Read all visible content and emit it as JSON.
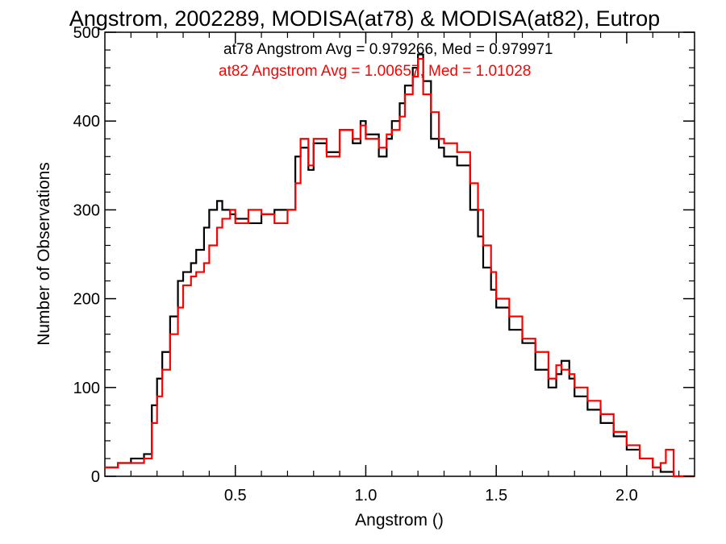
{
  "chart_data": {
    "type": "line",
    "title": "Angstrom, 2002289, MODISA(at78) & MODISA(at82), Eutrop",
    "xlabel": "Angstrom ()",
    "ylabel": "Number of Observations",
    "xlim": [
      0.0,
      2.26
    ],
    "ylim": [
      0,
      500
    ],
    "xticks": [
      0.5,
      1.0,
      1.5,
      2.0
    ],
    "xtick_labels": [
      "0.5",
      "1.0",
      "1.5",
      "2.0"
    ],
    "yticks": [
      0,
      100,
      200,
      300,
      400,
      500
    ],
    "ytick_labels": [
      "0",
      "100",
      "200",
      "300",
      "400",
      "500"
    ],
    "grid": false,
    "legend": "top-center annotations",
    "annotations": [
      {
        "text": "at78 Angstrom Avg = 0.979266, Med = 0.979971",
        "color": "#000000"
      },
      {
        "text": "at82 Angstrom Avg = 1.00657, Med = 1.01028",
        "color": "#ff0000"
      }
    ],
    "series": [
      {
        "color": "#000000",
        "step": true,
        "x": [
          0.0,
          0.05,
          0.1,
          0.15,
          0.18,
          0.2,
          0.22,
          0.25,
          0.28,
          0.3,
          0.33,
          0.35,
          0.38,
          0.4,
          0.43,
          0.45,
          0.48,
          0.5,
          0.55,
          0.6,
          0.65,
          0.7,
          0.73,
          0.75,
          0.78,
          0.8,
          0.85,
          0.9,
          0.95,
          0.98,
          1.0,
          1.05,
          1.08,
          1.1,
          1.13,
          1.15,
          1.18,
          1.2,
          1.22,
          1.25,
          1.28,
          1.3,
          1.35,
          1.4,
          1.43,
          1.45,
          1.48,
          1.5,
          1.55,
          1.6,
          1.65,
          1.7,
          1.73,
          1.75,
          1.78,
          1.8,
          1.85,
          1.9,
          1.95,
          2.0,
          2.05,
          2.1,
          2.13,
          2.15,
          2.18,
          2.26
        ],
        "y": [
          10,
          15,
          20,
          25,
          80,
          110,
          140,
          180,
          220,
          230,
          240,
          255,
          280,
          300,
          310,
          300,
          295,
          290,
          285,
          295,
          300,
          300,
          360,
          370,
          345,
          375,
          365,
          390,
          375,
          400,
          385,
          360,
          380,
          400,
          420,
          440,
          460,
          475,
          445,
          380,
          370,
          360,
          350,
          300,
          270,
          235,
          210,
          190,
          165,
          150,
          120,
          100,
          115,
          130,
          110,
          90,
          75,
          60,
          45,
          30,
          20,
          10,
          5,
          5,
          0,
          0
        ]
      },
      {
        "color": "#ff0000",
        "step": true,
        "x": [
          0.0,
          0.05,
          0.1,
          0.15,
          0.18,
          0.2,
          0.22,
          0.25,
          0.28,
          0.3,
          0.33,
          0.35,
          0.38,
          0.4,
          0.43,
          0.45,
          0.48,
          0.5,
          0.55,
          0.6,
          0.65,
          0.7,
          0.73,
          0.75,
          0.78,
          0.8,
          0.85,
          0.9,
          0.95,
          0.98,
          1.0,
          1.05,
          1.08,
          1.1,
          1.13,
          1.15,
          1.18,
          1.2,
          1.22,
          1.25,
          1.28,
          1.3,
          1.35,
          1.4,
          1.43,
          1.45,
          1.48,
          1.5,
          1.55,
          1.6,
          1.65,
          1.7,
          1.73,
          1.75,
          1.78,
          1.8,
          1.85,
          1.9,
          1.95,
          2.0,
          2.05,
          2.1,
          2.13,
          2.15,
          2.18,
          2.26
        ],
        "y": [
          10,
          15,
          15,
          20,
          60,
          90,
          120,
          160,
          190,
          215,
          225,
          230,
          240,
          260,
          280,
          290,
          300,
          285,
          300,
          295,
          285,
          300,
          330,
          380,
          350,
          380,
          360,
          390,
          380,
          395,
          380,
          370,
          385,
          390,
          405,
          430,
          450,
          470,
          430,
          410,
          380,
          375,
          365,
          330,
          300,
          260,
          230,
          200,
          180,
          155,
          140,
          110,
          125,
          120,
          115,
          100,
          85,
          70,
          50,
          35,
          20,
          10,
          15,
          30,
          0,
          0
        ]
      }
    ]
  }
}
